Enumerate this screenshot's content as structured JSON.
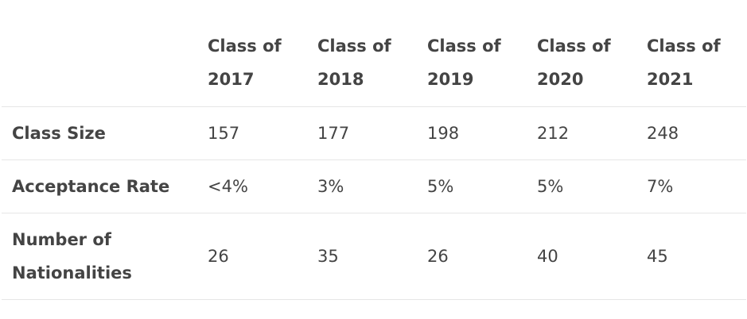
{
  "table": {
    "columns": [
      {
        "line1": "Class of",
        "line2": "2017"
      },
      {
        "line1": "Class of",
        "line2": "2018"
      },
      {
        "line1": "Class of",
        "line2": "2019"
      },
      {
        "line1": "Class of",
        "line2": "2020"
      },
      {
        "line1": "Class of",
        "line2": "2021"
      }
    ],
    "rows": [
      {
        "label_line1": "Class Size",
        "label_line2": "",
        "values": [
          "157",
          "177",
          "198",
          "212",
          "248"
        ]
      },
      {
        "label_line1": "Acceptance Rate",
        "label_line2": "",
        "values": [
          "<4%",
          "3%",
          "5%",
          "5%",
          "7%"
        ]
      },
      {
        "label_line1": "Number of",
        "label_line2": "Nationalities",
        "values": [
          "26",
          "35",
          "26",
          "40",
          "45"
        ]
      }
    ]
  }
}
